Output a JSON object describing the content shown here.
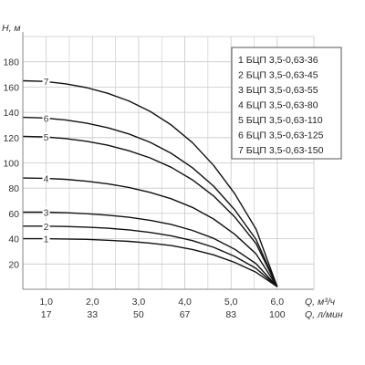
{
  "chart_data": {
    "type": "line",
    "y_axis_label": "H, м",
    "x_axis_labels": [
      "Q, м³/ч",
      "Q, л/мин"
    ],
    "y_ticks": [
      "20",
      "40",
      "60",
      "80",
      "100",
      "120",
      "140",
      "160",
      "180"
    ],
    "x_ticks_m3h": [
      "1,0",
      "2,0",
      "3,0",
      "4,0",
      "5,0",
      "6,0"
    ],
    "x_ticks_lmin": [
      "17",
      "33",
      "50",
      "67",
      "83",
      "100"
    ],
    "xlim": [
      0,
      6.3
    ],
    "ylim": [
      0,
      200
    ],
    "grid": true,
    "legend_position": "top-right",
    "series": [
      {
        "curve_label": "1",
        "name": "1 БЦП 3,5-0,63-36",
        "x": [
          0,
          0.5,
          1.0,
          1.5,
          2.0,
          2.5,
          3.0,
          3.5,
          4.0,
          4.5,
          5.0,
          5.5,
          6.0
        ],
        "y": [
          40,
          40,
          39.8,
          39.5,
          38.8,
          37.9,
          36.5,
          34.6,
          31.5,
          27.2,
          21.2,
          13.4,
          2
        ]
      },
      {
        "curve_label": "2",
        "name": "2 БЦП 3,5-0,63-45",
        "x": [
          0,
          0.5,
          1.0,
          1.5,
          2.0,
          2.5,
          3.0,
          3.5,
          4.0,
          4.5,
          5.0,
          5.5,
          6.0
        ],
        "y": [
          50,
          50,
          49.7,
          49.2,
          48.3,
          47,
          45,
          42.3,
          38.5,
          33.2,
          26,
          16.5,
          2
        ]
      },
      {
        "curve_label": "3",
        "name": "3 БЦП 3,5-0,63-55",
        "x": [
          0,
          0.5,
          1.0,
          1.5,
          2.0,
          2.5,
          3.0,
          3.5,
          4.0,
          4.5,
          5.0,
          5.5,
          6.0
        ],
        "y": [
          61,
          61,
          60.6,
          59.8,
          58.6,
          57,
          54.6,
          51.3,
          46.6,
          40.3,
          31.6,
          20.2,
          2
        ]
      },
      {
        "curve_label": "4",
        "name": "4 БЦП 3,5-0,63-80",
        "x": [
          0,
          0.5,
          1.0,
          1.5,
          2.0,
          2.5,
          3.0,
          3.5,
          4.0,
          4.5,
          5.0,
          5.5,
          6.0
        ],
        "y": [
          88,
          87.8,
          87,
          85.5,
          83.5,
          80.6,
          76.7,
          71.6,
          64.8,
          55.6,
          43.5,
          28,
          2
        ]
      },
      {
        "curve_label": "5",
        "name": "5 БЦП 3,5-0,63-110",
        "x": [
          0,
          0.5,
          1.0,
          1.5,
          2.0,
          2.5,
          3.0,
          3.5,
          4.0,
          4.5,
          5.0,
          5.5,
          6.0
        ],
        "y": [
          121,
          120.6,
          119.3,
          117.1,
          114,
          109.6,
          104,
          96.5,
          86.6,
          73.8,
          57.2,
          36.2,
          2
        ]
      },
      {
        "curve_label": "6",
        "name": "6 БЦП 3,5-0,63-125",
        "x": [
          0,
          0.5,
          1.0,
          1.5,
          2.0,
          2.5,
          3.0,
          3.5,
          4.0,
          4.5,
          5.0,
          5.5,
          6.0
        ],
        "y": [
          136,
          135.5,
          134,
          131.5,
          127.9,
          122.9,
          116.3,
          107.6,
          96.2,
          81.6,
          62.8,
          39.4,
          2
        ]
      },
      {
        "curve_label": "7",
        "name": "7 БЦП 3,5-0,63-150",
        "x": [
          0,
          0.5,
          1.0,
          1.5,
          2.0,
          2.5,
          3.0,
          3.5,
          4.0,
          4.5,
          5.0,
          5.5,
          6.0
        ],
        "y": [
          165,
          164.5,
          162.6,
          159.6,
          155.1,
          149,
          140.8,
          130,
          116,
          98,
          75.6,
          47.6,
          2
        ]
      }
    ]
  },
  "colors": {
    "curve": "#111111",
    "grid": "#c8c8c8",
    "axis": "#8a8a8a",
    "legend_border": "#555555"
  }
}
